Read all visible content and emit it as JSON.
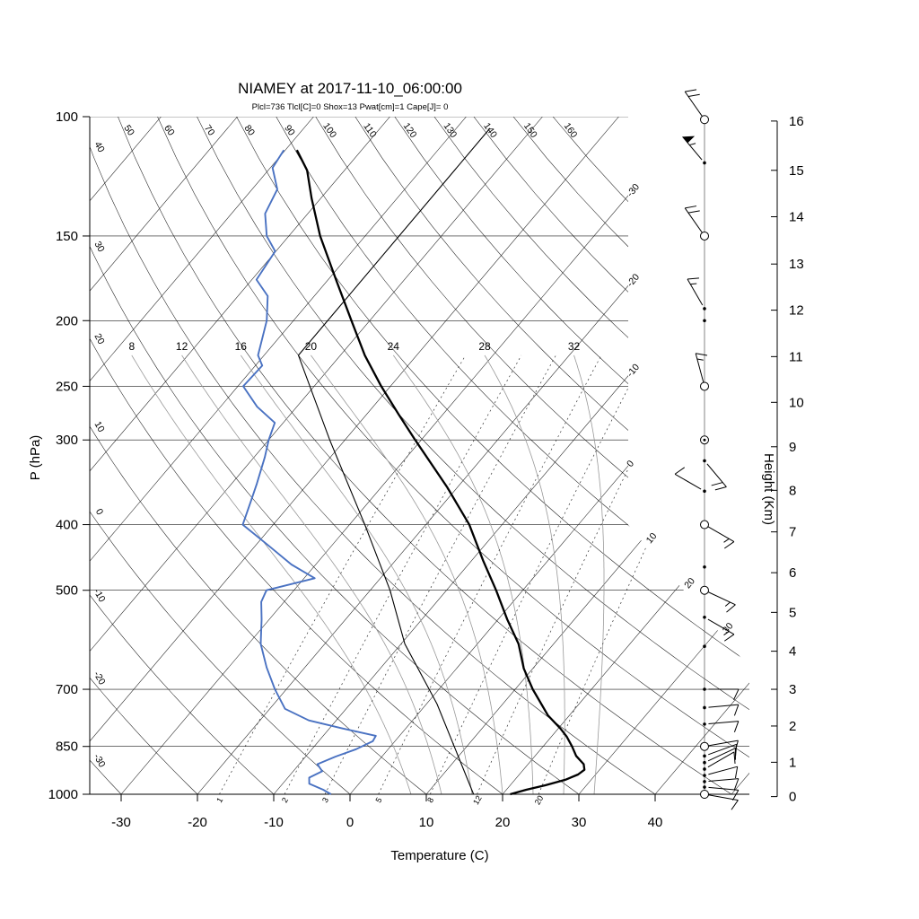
{
  "title": "NIAMEY at 2017-11-10_06:00:00",
  "params_line": "Plcl=736 Tlcl[C]=0 Shox=13 Pwat[cm]=1 Cape[J]= 0",
  "colors": {
    "param_text": "#b5511c",
    "temperature": "#000000",
    "dewpoint": "#4a72c2",
    "parcel": "#000000",
    "moist_adiabat": "#999999",
    "grid_line": "#1a1a1a",
    "mixing_line": "#333333"
  },
  "axes": {
    "pressure_label": "P (hPa)",
    "temperature_label": "Temperature (C)",
    "height_label": "Height (Km)",
    "pressure_ticks": [
      100,
      150,
      200,
      250,
      300,
      400,
      500,
      700,
      850,
      1000
    ],
    "temperature_ticks": [
      -30,
      -20,
      -10,
      0,
      10,
      20,
      30,
      40
    ],
    "height_ticks": [
      0,
      1,
      2,
      3,
      4,
      5,
      6,
      7,
      8,
      9,
      10,
      11,
      12,
      13,
      14,
      15,
      16
    ]
  },
  "grid": {
    "isotherms": {
      "min": -120,
      "max": 50,
      "step": 10
    },
    "dry_adiabats": [
      -30,
      -20,
      -10,
      0,
      10,
      20,
      30,
      40,
      50,
      60,
      70,
      80,
      90,
      100,
      110,
      120,
      130,
      140,
      150,
      160
    ],
    "moist_adiabats": [
      8,
      12,
      16,
      20,
      24,
      28,
      32
    ],
    "mixing_ratios": [
      1,
      2,
      3,
      5,
      8,
      12,
      20
    ],
    "isotherm_edge_labels": [
      -30,
      -20,
      -10,
      0,
      10,
      20,
      30
    ]
  },
  "chart_data": {
    "type": "line",
    "chart_kind": "skewt_logp_sounding",
    "station": "NIAMEY",
    "datetime": "2017-11-10_06:00:00",
    "indices": {
      "Plcl_hPa": 736,
      "Tlcl_C": 0,
      "Showalter": 13,
      "Pwat_cm": 1,
      "Cape_J": 0
    },
    "xlabel": "Temperature (C)",
    "ylabel": "P (hPa)",
    "y2label": "Height (Km)",
    "pressure_range_hPa": [
      100,
      1000
    ],
    "temperature_range_C": [
      -30,
      40
    ],
    "temperature_profile": [
      [
        1000,
        21.0
      ],
      [
        985,
        22.6
      ],
      [
        970,
        24.6
      ],
      [
        952,
        26.6
      ],
      [
        935,
        27.7
      ],
      [
        920,
        28.0
      ],
      [
        903,
        27.3
      ],
      [
        878,
        25.4
      ],
      [
        850,
        23.8
      ],
      [
        822,
        22.0
      ],
      [
        800,
        20.3
      ],
      [
        765,
        17.2
      ],
      [
        700,
        12.3
      ],
      [
        652,
        8.8
      ],
      [
        600,
        5.4
      ],
      [
        552,
        1.2
      ],
      [
        500,
        -3.5
      ],
      [
        452,
        -8.5
      ],
      [
        400,
        -14.3
      ],
      [
        352,
        -21.4
      ],
      [
        300,
        -30.8
      ],
      [
        275,
        -35.8
      ],
      [
        250,
        -41.2
      ],
      [
        225,
        -46.8
      ],
      [
        200,
        -52.4
      ],
      [
        175,
        -58.7
      ],
      [
        150,
        -65.9
      ],
      [
        132,
        -71.2
      ],
      [
        120,
        -74.9
      ],
      [
        112,
        -78.5
      ]
    ],
    "dewpoint_profile": [
      [
        1000,
        -2.5
      ],
      [
        985,
        -4.0
      ],
      [
        965,
        -6.5
      ],
      [
        945,
        -7.2
      ],
      [
        925,
        -6.2
      ],
      [
        903,
        -7.6
      ],
      [
        880,
        -6.1
      ],
      [
        858,
        -4.2
      ],
      [
        835,
        -2.9
      ],
      [
        820,
        -3.1
      ],
      [
        800,
        -8.2
      ],
      [
        778,
        -13.6
      ],
      [
        748,
        -18.0
      ],
      [
        700,
        -21.5
      ],
      [
        650,
        -25.0
      ],
      [
        600,
        -28.4
      ],
      [
        552,
        -31.0
      ],
      [
        520,
        -33.0
      ],
      [
        500,
        -33.6
      ],
      [
        480,
        -28.6
      ],
      [
        458,
        -33.2
      ],
      [
        430,
        -38.2
      ],
      [
        400,
        -44.0
      ],
      [
        368,
        -45.6
      ],
      [
        348,
        -46.7
      ],
      [
        318,
        -48.6
      ],
      [
        300,
        -50.0
      ],
      [
        283,
        -51.1
      ],
      [
        268,
        -55.2
      ],
      [
        250,
        -59.3
      ],
      [
        233,
        -59.1
      ],
      [
        225,
        -60.8
      ],
      [
        200,
        -63.5
      ],
      [
        184,
        -66.1
      ],
      [
        174,
        -69.4
      ],
      [
        158,
        -70.1
      ],
      [
        150,
        -72.9
      ],
      [
        139,
        -75.6
      ],
      [
        128,
        -76.7
      ],
      [
        119,
        -79.7
      ],
      [
        112,
        -80.2
      ]
    ],
    "parcel_profile": [
      [
        1000,
        16.2
      ],
      [
        736,
        1.4
      ],
      [
        600,
        -9.5
      ],
      [
        500,
        -17.4
      ],
      [
        400,
        -28.0
      ],
      [
        300,
        -42.0
      ],
      [
        225,
        -55.5
      ],
      [
        104,
        -55.6
      ]
    ],
    "winds": [
      {
        "p": 101,
        "dir": 325,
        "spd": 20,
        "sym": "circle"
      },
      {
        "p": 117,
        "dir": 320,
        "spd": 55,
        "sym": "dot"
      },
      {
        "p": 150,
        "dir": 325,
        "spd": 20,
        "sym": "circle"
      },
      {
        "p": 192,
        "dir": 330,
        "spd": 15,
        "sym": "dot"
      },
      {
        "p": 200,
        "dir": 0,
        "spd": 0,
        "sym": "dot"
      },
      {
        "p": 250,
        "dir": 345,
        "spd": 15,
        "sym": "circle"
      },
      {
        "p": 300,
        "dir": 0,
        "spd": 0,
        "sym": "circle-dot"
      },
      {
        "p": 322,
        "dir": 140,
        "spd": 20,
        "sym": "dot"
      },
      {
        "p": 357,
        "dir": 300,
        "spd": 10,
        "sym": "dot"
      },
      {
        "p": 400,
        "dir": 120,
        "spd": 15,
        "sym": "circle"
      },
      {
        "p": 462,
        "dir": 0,
        "spd": 0,
        "sym": "dot"
      },
      {
        "p": 500,
        "dir": 115,
        "spd": 15,
        "sym": "circle"
      },
      {
        "p": 548,
        "dir": 120,
        "spd": 15,
        "sym": "dot"
      },
      {
        "p": 605,
        "dir": 0,
        "spd": 0,
        "sym": "dot"
      },
      {
        "p": 700,
        "dir": 90,
        "spd": 10,
        "sym": "dot"
      },
      {
        "p": 745,
        "dir": 85,
        "spd": 10,
        "sym": "dot"
      },
      {
        "p": 788,
        "dir": 85,
        "spd": 10,
        "sym": "dot"
      },
      {
        "p": 850,
        "dir": 80,
        "spd": 10,
        "sym": "circle"
      },
      {
        "p": 878,
        "dir": 70,
        "spd": 10,
        "sym": "dot"
      },
      {
        "p": 898,
        "dir": 65,
        "spd": 10,
        "sym": "dot"
      },
      {
        "p": 918,
        "dir": 60,
        "spd": 8,
        "sym": "dot"
      },
      {
        "p": 938,
        "dir": 75,
        "spd": 10,
        "sym": "dot"
      },
      {
        "p": 958,
        "dir": 85,
        "spd": 12,
        "sym": "dot"
      },
      {
        "p": 976,
        "dir": 95,
        "spd": 10,
        "sym": "dot"
      },
      {
        "p": 1000,
        "dir": 100,
        "spd": 8,
        "sym": "circle"
      }
    ]
  }
}
